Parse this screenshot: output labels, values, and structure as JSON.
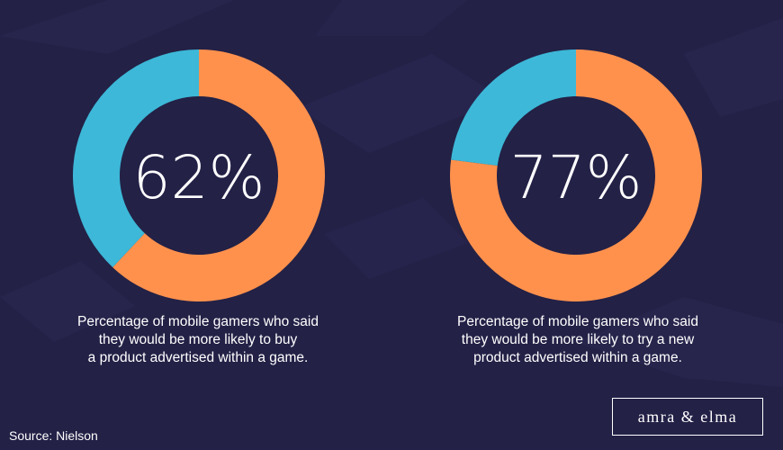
{
  "colors": {
    "background": "#232146",
    "highlight": "#FF914D",
    "remainder": "#3DB8D8",
    "text": "#FFFFFF"
  },
  "chart_data": [
    {
      "type": "pie",
      "variant": "donut",
      "center_label": "62%",
      "values": [
        62,
        38
      ],
      "colors": [
        "#FF914D",
        "#3DB8D8"
      ],
      "caption": "Percentage of mobile gamers who said\nthey would be more likely to buy\na product advertised within a game."
    },
    {
      "type": "pie",
      "variant": "donut",
      "center_label": "77%",
      "values": [
        77,
        23
      ],
      "colors": [
        "#FF914D",
        "#3DB8D8"
      ],
      "caption": "Percentage of mobile gamers who said\nthey would be more likely to try a new\nproduct advertised within a game."
    }
  ],
  "source": "Source: Nielson",
  "logo_text": "amra & elma"
}
